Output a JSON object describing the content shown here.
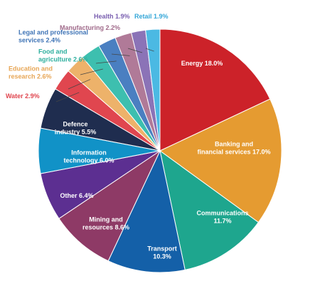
{
  "chart_data": {
    "type": "pie",
    "title": "",
    "start_angle_deg": 0,
    "direction": "clockwise",
    "slices": [
      {
        "label": "Energy 18.0%",
        "name": "Energy",
        "value": 18.0,
        "color": "#CC2229",
        "text_color": "#ffffff",
        "inside": true
      },
      {
        "label": "Banking and\nfinancial services 17.0%",
        "name": "Banking and financial services",
        "value": 17.0,
        "color": "#E59B31",
        "text_color": "#ffffff",
        "inside": true
      },
      {
        "label": "Communications\n11.7%",
        "name": "Communications",
        "value": 11.7,
        "color": "#1EA68E",
        "text_color": "#ffffff",
        "inside": true
      },
      {
        "label": "Transport\n10.3%",
        "name": "Transport",
        "value": 10.3,
        "color": "#1460A8",
        "text_color": "#ffffff",
        "inside": true
      },
      {
        "label": "Mining and\nresources 8.6%",
        "name": "Mining and resources",
        "value": 8.6,
        "color": "#8E3A66",
        "text_color": "#ffffff",
        "inside": true
      },
      {
        "label": "Other 6.4%",
        "name": "Other",
        "value": 6.4,
        "color": "#5C2F91",
        "text_color": "#ffffff",
        "inside": true
      },
      {
        "label": "Information\ntechnology 6.0%",
        "name": "Information technology",
        "value": 6.0,
        "color": "#1192C7",
        "text_color": "#ffffff",
        "inside": true
      },
      {
        "label": "Defence\nindustry 5.5%",
        "name": "Defence industry",
        "value": 5.5,
        "color": "#1F2D4F",
        "text_color": "#ffffff",
        "inside": true
      },
      {
        "label": "Water 2.9%",
        "name": "Water",
        "value": 2.9,
        "color": "#E0464F",
        "text_color": "#E0464F",
        "inside": false
      },
      {
        "label": "Education and\nresearch 2.6%",
        "name": "Education and research",
        "value": 2.6,
        "color": "#EDB26A",
        "text_color": "#E7A656",
        "inside": false
      },
      {
        "label": "Food and\nagriculture 2.6%",
        "name": "Food and agriculture",
        "value": 2.6,
        "color": "#3DBFAF",
        "text_color": "#2DAF9E",
        "inside": false
      },
      {
        "label": "Legal and professional\nservices 2.4%",
        "name": "Legal and professional services",
        "value": 2.4,
        "color": "#4A7FC1",
        "text_color": "#3F74B6",
        "inside": false
      },
      {
        "label": "Manufacturing 2.2%",
        "name": "Manufacturing",
        "value": 2.2,
        "color": "#B07A98",
        "text_color": "#A06A8A",
        "inside": false
      },
      {
        "label": "Health 1.9%",
        "name": "Health",
        "value": 1.9,
        "color": "#8B73B7",
        "text_color": "#7A5FB0",
        "inside": false
      },
      {
        "label": "Retail 1.9%",
        "name": "Retail",
        "value": 1.9,
        "color": "#4BB9E3",
        "text_color": "#35A7D8",
        "inside": false
      }
    ]
  }
}
